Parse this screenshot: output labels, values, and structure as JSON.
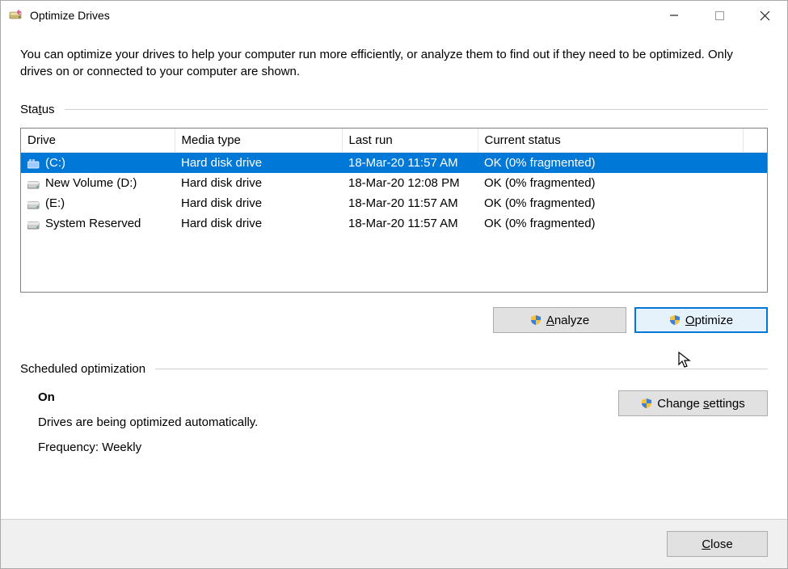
{
  "window": {
    "title": "Optimize Drives",
    "intro": "You can optimize your drives to help your computer run more efficiently, or analyze them to find out if they need to be optimized. Only drives on or connected to your computer are shown."
  },
  "status_section": {
    "label_pre": "Sta",
    "label_u": "t",
    "label_post": "us",
    "columns": {
      "drive": "Drive",
      "media_type": "Media type",
      "last_run": "Last run",
      "current_status": "Current status"
    },
    "rows": [
      {
        "name": "(C:)",
        "media": "Hard disk drive",
        "last": "18-Mar-20 11:57 AM",
        "status": "OK (0% fragmented)",
        "selected": true,
        "icon": "drive-c"
      },
      {
        "name": "New Volume (D:)",
        "media": "Hard disk drive",
        "last": "18-Mar-20 12:08 PM",
        "status": "OK (0% fragmented)",
        "selected": false,
        "icon": "drive"
      },
      {
        "name": "(E:)",
        "media": "Hard disk drive",
        "last": "18-Mar-20 11:57 AM",
        "status": "OK (0% fragmented)",
        "selected": false,
        "icon": "drive"
      },
      {
        "name": "System Reserved",
        "media": "Hard disk drive",
        "last": "18-Mar-20 11:57 AM",
        "status": "OK (0% fragmented)",
        "selected": false,
        "icon": "drive"
      }
    ],
    "buttons": {
      "analyze_u": "A",
      "analyze_rest": "nalyze",
      "optimize_u": "O",
      "optimize_rest": "ptimize"
    }
  },
  "sched_section": {
    "label": "Scheduled optimization",
    "on_label": "On",
    "line1": "Drives are being optimized automatically.",
    "line2": "Frequency: Weekly",
    "change_pre": "Change ",
    "change_u": "s",
    "change_post": "ettings"
  },
  "footer": {
    "close_u": "C",
    "close_rest": "lose"
  },
  "colors": {
    "selection_bg": "#0078d7",
    "button_bg": "#e1e1e1",
    "button_border": "#adadad",
    "focus_border": "#0078d7",
    "focus_bg": "#e5f1fb",
    "divider": "#cfcfcf",
    "footer_bg": "#f0f0f0"
  }
}
